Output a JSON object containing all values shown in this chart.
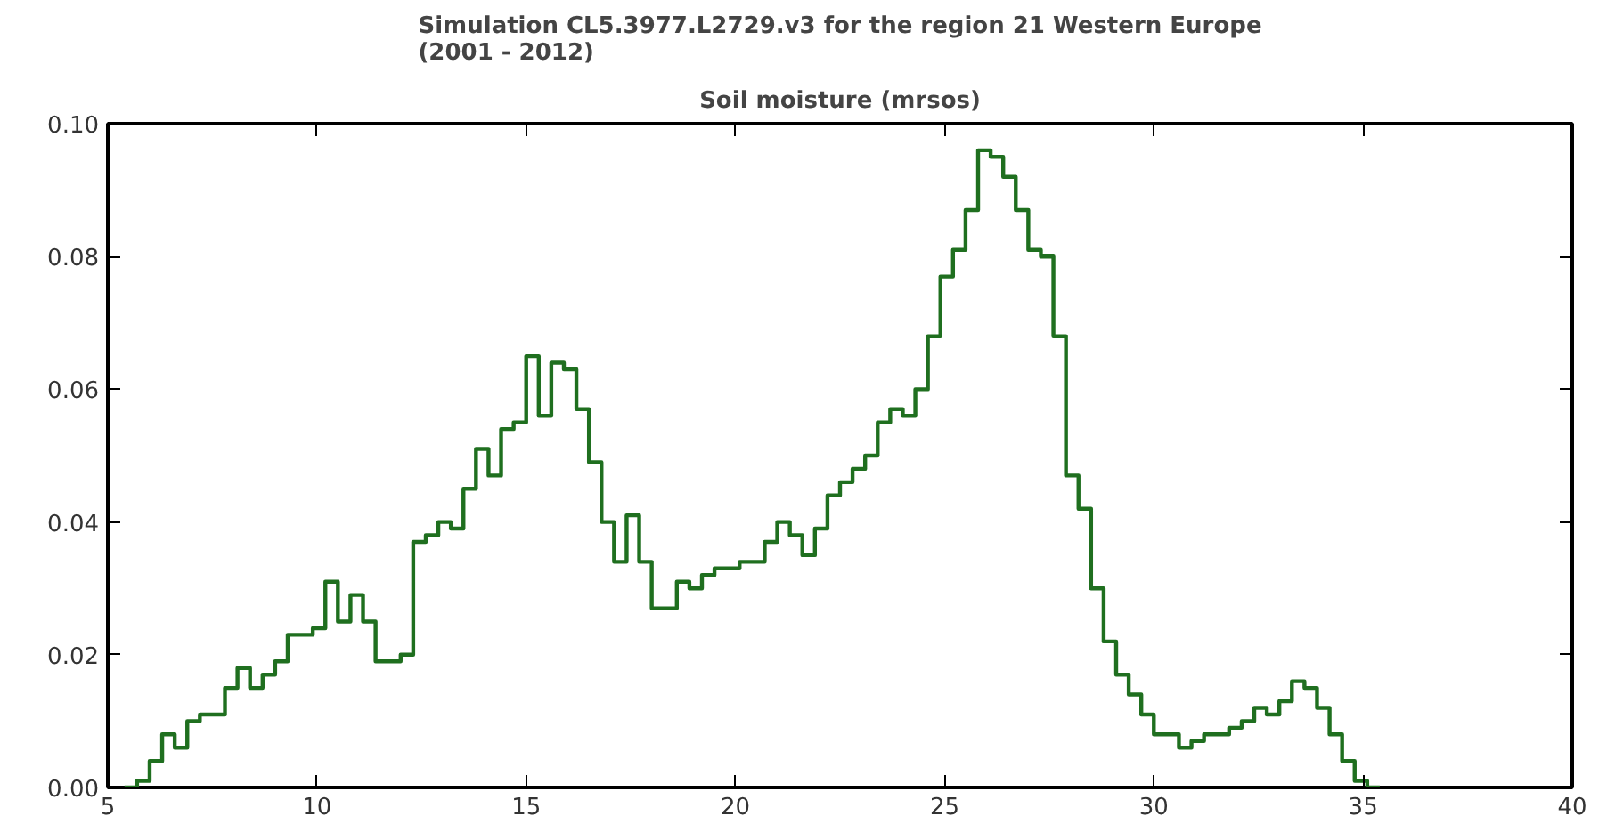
{
  "chart_data": {
    "type": "histogram",
    "title": "Simulation CL5.3977.L2729.v3 for the region 21 Western Europe\n(2001 - 2012)",
    "subtitle": "Soil moisture (mrsos)",
    "color": "#1f6f1f",
    "bins": [
      5.4,
      5.7,
      6.0,
      6.3,
      6.6,
      6.9,
      7.2,
      7.5,
      7.8,
      8.1,
      8.4,
      8.7,
      9.0,
      9.3,
      9.6,
      9.9,
      10.2,
      10.5,
      10.8,
      11.1,
      11.4,
      11.7,
      12.0,
      12.3,
      12.6,
      12.9,
      13.2,
      13.5,
      13.8,
      14.1,
      14.4,
      14.7,
      15.0,
      15.3,
      15.6,
      15.9,
      16.2,
      16.5,
      16.8,
      17.1,
      17.4,
      17.7,
      18.0,
      18.3,
      18.6,
      18.9,
      19.2,
      19.5,
      19.8,
      20.1,
      20.4,
      20.7,
      21.0,
      21.3,
      21.6,
      21.9,
      22.2,
      22.5,
      22.8,
      23.1,
      23.4,
      23.7,
      24.0,
      24.3,
      24.6,
      24.9,
      25.2,
      25.5,
      25.8,
      26.1,
      26.4,
      26.7,
      27.0,
      27.3,
      27.6,
      27.9,
      28.2,
      28.5,
      28.8,
      29.1,
      29.4,
      29.7,
      30.0,
      30.3,
      30.6,
      30.9,
      31.2,
      31.5,
      31.8,
      32.1,
      32.4,
      32.7,
      33.0,
      33.3,
      33.6,
      33.9,
      34.2,
      34.5,
      34.8,
      35.1,
      35.4
    ],
    "values": [
      0.0,
      0.001,
      0.004,
      0.008,
      0.006,
      0.01,
      0.011,
      0.011,
      0.015,
      0.018,
      0.015,
      0.017,
      0.019,
      0.023,
      0.023,
      0.024,
      0.031,
      0.025,
      0.029,
      0.025,
      0.019,
      0.019,
      0.02,
      0.037,
      0.038,
      0.04,
      0.039,
      0.045,
      0.051,
      0.047,
      0.054,
      0.055,
      0.065,
      0.056,
      0.064,
      0.063,
      0.057,
      0.049,
      0.04,
      0.034,
      0.041,
      0.034,
      0.027,
      0.027,
      0.031,
      0.03,
      0.032,
      0.033,
      0.033,
      0.034,
      0.034,
      0.037,
      0.04,
      0.038,
      0.035,
      0.039,
      0.044,
      0.046,
      0.048,
      0.05,
      0.055,
      0.057,
      0.056,
      0.06,
      0.068,
      0.077,
      0.081,
      0.087,
      0.096,
      0.095,
      0.092,
      0.087,
      0.081,
      0.08,
      0.068,
      0.047,
      0.042,
      0.03,
      0.022,
      0.017,
      0.014,
      0.011,
      0.008,
      0.008,
      0.006,
      0.007,
      0.008,
      0.008,
      0.009,
      0.01,
      0.012,
      0.011,
      0.013,
      0.016,
      0.015,
      0.012,
      0.008,
      0.004,
      0.001,
      0.0
    ],
    "xlim": [
      5,
      40
    ],
    "ylim": [
      0,
      0.1
    ],
    "xticks": [
      5,
      10,
      15,
      20,
      25,
      30,
      35,
      40
    ],
    "yticks": [
      {
        "value": 0,
        "label": "0.00"
      },
      {
        "value": 0.02,
        "label": "0.02"
      },
      {
        "value": 0.04,
        "label": "0.04"
      },
      {
        "value": 0.06,
        "label": "0.06"
      },
      {
        "value": 0.08,
        "label": "0.08"
      },
      {
        "value": 0.1,
        "label": "0.10"
      }
    ],
    "grid": false
  }
}
